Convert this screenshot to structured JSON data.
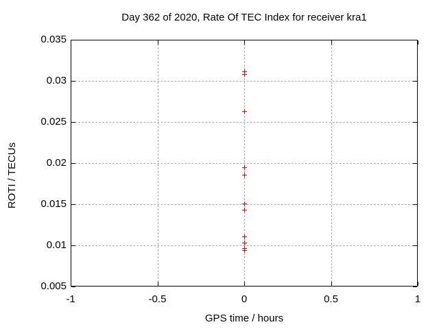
{
  "chart_data": {
    "type": "scatter",
    "title": "Day 362 of 2020, Rate Of TEC Index for receiver kra1",
    "xlabel": "GPS time / hours",
    "ylabel": "ROTI / TECUs",
    "xlim": [
      -1,
      1
    ],
    "ylim": [
      0.005,
      0.035
    ],
    "x_ticks": [
      {
        "value": -1,
        "label": "-1"
      },
      {
        "value": -0.5,
        "label": "-0.5"
      },
      {
        "value": 0,
        "label": "0"
      },
      {
        "value": 0.5,
        "label": "0.5"
      },
      {
        "value": 1,
        "label": "1"
      }
    ],
    "y_ticks": [
      {
        "value": 0.005,
        "label": "0.005"
      },
      {
        "value": 0.01,
        "label": "0.01"
      },
      {
        "value": 0.015,
        "label": "0.015"
      },
      {
        "value": 0.02,
        "label": "0.02"
      },
      {
        "value": 0.025,
        "label": "0.025"
      },
      {
        "value": 0.03,
        "label": "0.03"
      },
      {
        "value": 0.035,
        "label": "0.035"
      }
    ],
    "grid": true,
    "legend_position": "none",
    "marker": "plus",
    "colors": {
      "marker": "#ff0000",
      "grid": "#a8a8a8",
      "axis": "#000000",
      "background": "#ffffff"
    },
    "series": [
      {
        "name": "ROTI",
        "x": [
          0,
          0,
          0,
          0,
          0,
          0,
          0,
          0,
          0,
          0,
          0
        ],
        "y": [
          0.0312,
          0.0308,
          0.0263,
          0.0195,
          0.0186,
          0.0151,
          0.0143,
          0.0111,
          0.0103,
          0.0097,
          0.0094
        ]
      }
    ]
  }
}
